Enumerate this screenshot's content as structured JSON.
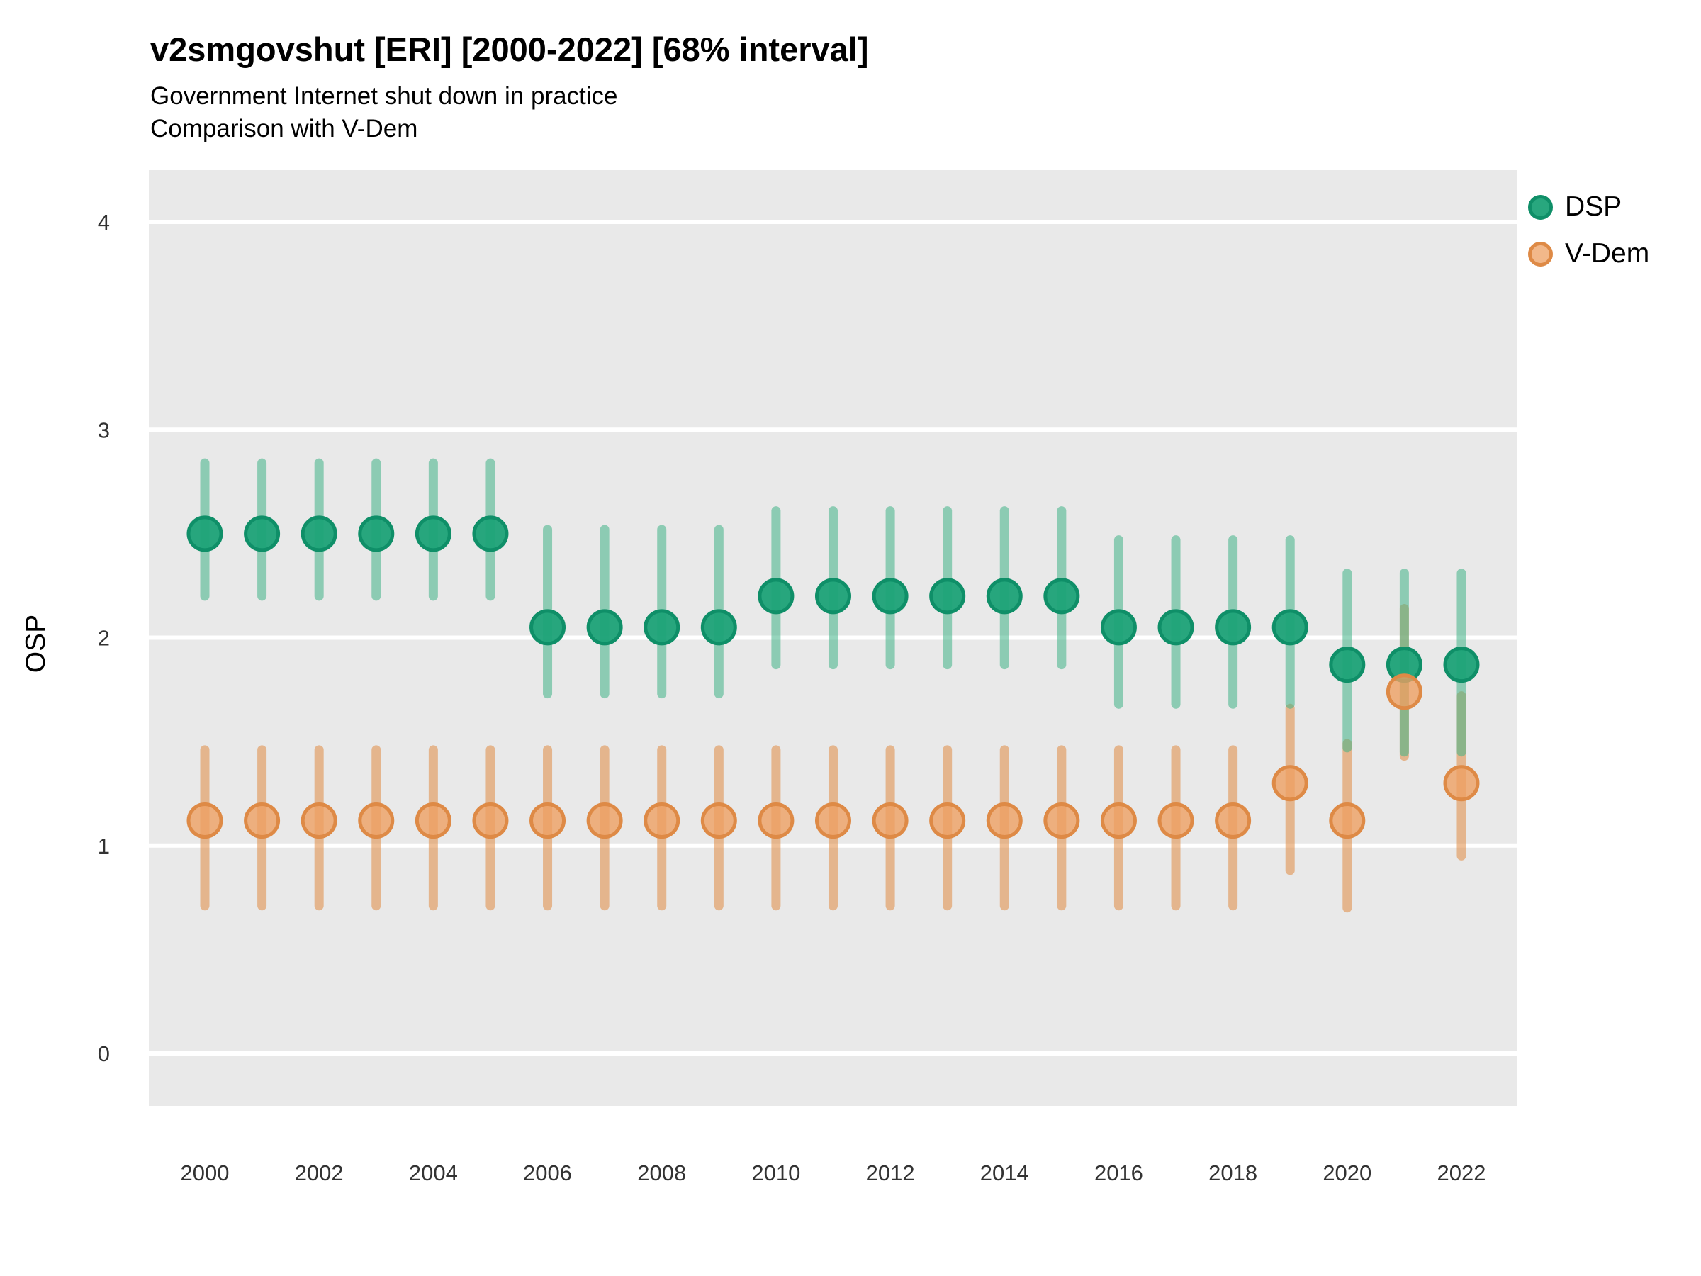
{
  "chart_data": {
    "type": "scatter",
    "subtype": "pointrange",
    "title": "v2smgovshut [ERI] [2000-2022] [68% interval]",
    "subtitle": "Government Internet shut down in practice",
    "subtitle2": "Comparison with V-Dem",
    "ylabel": "OSP",
    "xlabel": "",
    "ylim": [
      0,
      4
    ],
    "yticks": [
      4,
      3,
      2,
      1,
      0
    ],
    "xticks": [
      2000,
      2002,
      2004,
      2006,
      2008,
      2010,
      2012,
      2014,
      2016,
      2018,
      2020,
      2022
    ],
    "x_range": [
      2000,
      2022
    ],
    "grid": true,
    "legend_position": "right",
    "panel_background": "#E9E9E9",
    "grid_color": "#FFFFFF",
    "tick_label_color": "#333333",
    "series": [
      {
        "name": "DSP",
        "point_color": "#1CA277",
        "point_stroke": "#0F8F68",
        "point_alpha": 0.95,
        "bar_color": "#3FB287",
        "bar_alpha": 0.55,
        "points": [
          {
            "x": 2000,
            "y": 2.5,
            "low": 2.2,
            "high": 2.84
          },
          {
            "x": 2001,
            "y": 2.5,
            "low": 2.2,
            "high": 2.84
          },
          {
            "x": 2002,
            "y": 2.5,
            "low": 2.2,
            "high": 2.84
          },
          {
            "x": 2003,
            "y": 2.5,
            "low": 2.2,
            "high": 2.84
          },
          {
            "x": 2004,
            "y": 2.5,
            "low": 2.2,
            "high": 2.84
          },
          {
            "x": 2005,
            "y": 2.5,
            "low": 2.2,
            "high": 2.84
          },
          {
            "x": 2006,
            "y": 2.05,
            "low": 1.73,
            "high": 2.52
          },
          {
            "x": 2007,
            "y": 2.05,
            "low": 1.73,
            "high": 2.52
          },
          {
            "x": 2008,
            "y": 2.05,
            "low": 1.73,
            "high": 2.52
          },
          {
            "x": 2009,
            "y": 2.05,
            "low": 1.73,
            "high": 2.52
          },
          {
            "x": 2010,
            "y": 2.2,
            "low": 1.87,
            "high": 2.61
          },
          {
            "x": 2011,
            "y": 2.2,
            "low": 1.87,
            "high": 2.61
          },
          {
            "x": 2012,
            "y": 2.2,
            "low": 1.87,
            "high": 2.61
          },
          {
            "x": 2013,
            "y": 2.2,
            "low": 1.87,
            "high": 2.61
          },
          {
            "x": 2014,
            "y": 2.2,
            "low": 1.87,
            "high": 2.61
          },
          {
            "x": 2015,
            "y": 2.2,
            "low": 1.87,
            "high": 2.61
          },
          {
            "x": 2016,
            "y": 2.05,
            "low": 1.68,
            "high": 2.47
          },
          {
            "x": 2017,
            "y": 2.05,
            "low": 1.68,
            "high": 2.47
          },
          {
            "x": 2018,
            "y": 2.05,
            "low": 1.68,
            "high": 2.47
          },
          {
            "x": 2019,
            "y": 2.05,
            "low": 1.68,
            "high": 2.47
          },
          {
            "x": 2020,
            "y": 1.87,
            "low": 1.47,
            "high": 2.31
          },
          {
            "x": 2021,
            "y": 1.87,
            "low": 1.45,
            "high": 2.31
          },
          {
            "x": 2022,
            "y": 1.87,
            "low": 1.45,
            "high": 2.31
          }
        ]
      },
      {
        "name": "V-Dem",
        "point_color": "#EEA063",
        "point_stroke": "#DE8A46",
        "point_alpha": 0.8,
        "bar_color": "#E08A42",
        "bar_alpha": 0.55,
        "points": [
          {
            "x": 2000,
            "y": 1.12,
            "low": 0.71,
            "high": 1.46
          },
          {
            "x": 2001,
            "y": 1.12,
            "low": 0.71,
            "high": 1.46
          },
          {
            "x": 2002,
            "y": 1.12,
            "low": 0.71,
            "high": 1.46
          },
          {
            "x": 2003,
            "y": 1.12,
            "low": 0.71,
            "high": 1.46
          },
          {
            "x": 2004,
            "y": 1.12,
            "low": 0.71,
            "high": 1.46
          },
          {
            "x": 2005,
            "y": 1.12,
            "low": 0.71,
            "high": 1.46
          },
          {
            "x": 2006,
            "y": 1.12,
            "low": 0.71,
            "high": 1.46
          },
          {
            "x": 2007,
            "y": 1.12,
            "low": 0.71,
            "high": 1.46
          },
          {
            "x": 2008,
            "y": 1.12,
            "low": 0.71,
            "high": 1.46
          },
          {
            "x": 2009,
            "y": 1.12,
            "low": 0.71,
            "high": 1.46
          },
          {
            "x": 2010,
            "y": 1.12,
            "low": 0.71,
            "high": 1.46
          },
          {
            "x": 2011,
            "y": 1.12,
            "low": 0.71,
            "high": 1.46
          },
          {
            "x": 2012,
            "y": 1.12,
            "low": 0.71,
            "high": 1.46
          },
          {
            "x": 2013,
            "y": 1.12,
            "low": 0.71,
            "high": 1.46
          },
          {
            "x": 2014,
            "y": 1.12,
            "low": 0.71,
            "high": 1.46
          },
          {
            "x": 2015,
            "y": 1.12,
            "low": 0.71,
            "high": 1.46
          },
          {
            "x": 2016,
            "y": 1.12,
            "low": 0.71,
            "high": 1.46
          },
          {
            "x": 2017,
            "y": 1.12,
            "low": 0.71,
            "high": 1.46
          },
          {
            "x": 2018,
            "y": 1.12,
            "low": 0.71,
            "high": 1.46
          },
          {
            "x": 2019,
            "y": 1.3,
            "low": 0.88,
            "high": 1.66
          },
          {
            "x": 2020,
            "y": 1.12,
            "low": 0.7,
            "high": 1.49
          },
          {
            "x": 2021,
            "y": 1.74,
            "low": 1.43,
            "high": 2.14
          },
          {
            "x": 2022,
            "y": 1.3,
            "low": 0.95,
            "high": 1.72
          }
        ]
      }
    ]
  }
}
